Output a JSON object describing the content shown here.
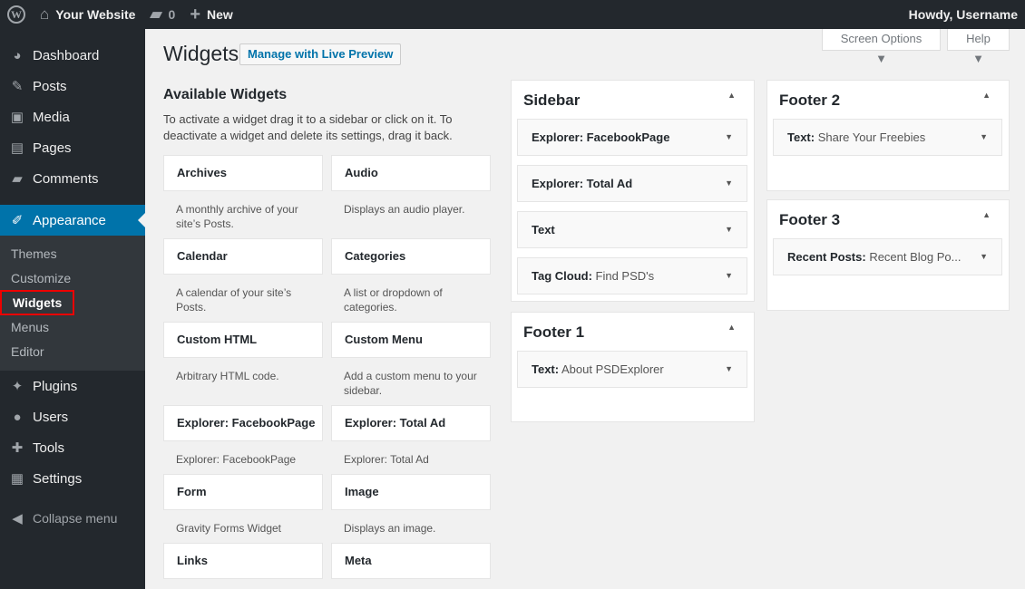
{
  "adminbar": {
    "site": "Your Website",
    "comments": "0",
    "new": "New",
    "howdy": "Howdy, Username"
  },
  "menu": {
    "items": [
      {
        "label": "Dashboard",
        "icon": "dashboard-icon",
        "glyph": "◕"
      },
      {
        "label": "Posts",
        "icon": "pin-icon",
        "glyph": "✎"
      },
      {
        "label": "Media",
        "icon": "media-icon",
        "glyph": "▣"
      },
      {
        "label": "Pages",
        "icon": "pages-icon",
        "glyph": "▤"
      },
      {
        "label": "Comments",
        "icon": "comment-icon",
        "glyph": "▰"
      }
    ],
    "appearance": "Appearance",
    "sub": [
      "Themes",
      "Customize",
      "Widgets",
      "Menus",
      "Editor"
    ],
    "items2": [
      {
        "label": "Plugins",
        "icon": "plugin-icon",
        "glyph": "✦"
      },
      {
        "label": "Users",
        "icon": "user-icon",
        "glyph": "●"
      },
      {
        "label": "Tools",
        "icon": "wrench-icon",
        "glyph": "✚"
      },
      {
        "label": "Settings",
        "icon": "settings-icon",
        "glyph": "▦"
      }
    ],
    "collapse": "Collapse menu"
  },
  "page": {
    "title": "Widgets",
    "live_preview": "Manage with Live Preview",
    "screen_options": "Screen Options ▼",
    "help": "Help ▼"
  },
  "available": {
    "heading": "Available Widgets",
    "desc": "To activate a widget drag it to a sidebar or click on it. To deactivate a widget and delete its settings, drag it back.",
    "widgets": [
      {
        "title": "Archives",
        "desc": "A monthly archive of your site’s Posts."
      },
      {
        "title": "Audio",
        "desc": "Displays an audio player."
      },
      {
        "title": "Calendar",
        "desc": "A calendar of your site’s Posts."
      },
      {
        "title": "Categories",
        "desc": "A list or dropdown of categories."
      },
      {
        "title": "Custom HTML",
        "desc": "Arbitrary HTML code."
      },
      {
        "title": "Custom Menu",
        "desc": "Add a custom menu to your sidebar."
      },
      {
        "title": "Explorer: FacebookPage",
        "desc": "Explorer: FacebookPage"
      },
      {
        "title": "Explorer: Total Ad",
        "desc": "Explorer: Total Ad"
      },
      {
        "title": "Form",
        "desc": "Gravity Forms Widget"
      },
      {
        "title": "Image",
        "desc": "Displays an image."
      },
      {
        "title": "Links",
        "desc": ""
      },
      {
        "title": "Meta",
        "desc": ""
      }
    ]
  },
  "areas": {
    "sidebar": {
      "title": "Sidebar",
      "widgets": [
        {
          "name": "Explorer: FacebookPage",
          "sub": ""
        },
        {
          "name": "Explorer: Total Ad",
          "sub": ""
        },
        {
          "name": "Text",
          "sub": ""
        },
        {
          "name": "Tag Cloud:",
          "sub": " Find PSD's"
        }
      ]
    },
    "footer1": {
      "title": "Footer 1",
      "widgets": [
        {
          "name": "Text:",
          "sub": " About PSDExplorer"
        }
      ]
    },
    "footer2": {
      "title": "Footer 2",
      "widgets": [
        {
          "name": "Text:",
          "sub": " Share Your Freebies"
        }
      ]
    },
    "footer3": {
      "title": "Footer 3",
      "widgets": [
        {
          "name": "Recent Posts:",
          "sub": " Recent Blog Po..."
        }
      ]
    }
  },
  "colors": {
    "adminbar": "#23282d",
    "accent": "#0073aa",
    "highlight": "#e00000"
  }
}
